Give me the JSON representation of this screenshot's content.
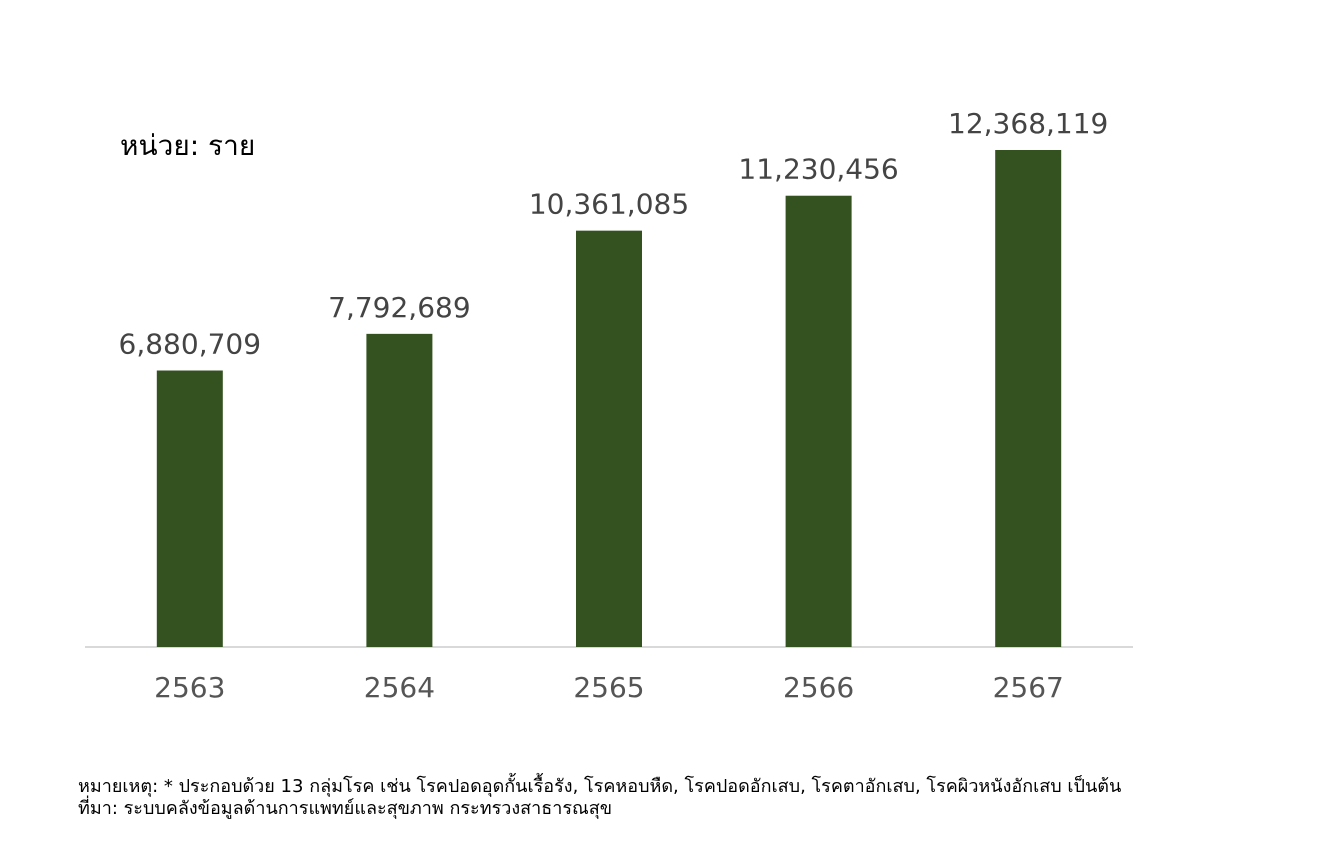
{
  "chart_data": {
    "type": "bar",
    "unit_label": "หน่วย: ราย",
    "categories": [
      "2563",
      "2564",
      "2565",
      "2566",
      "2567"
    ],
    "values": [
      6880709,
      7792689,
      10361085,
      11230456,
      12368119
    ],
    "data_labels": [
      "6,880,709",
      "7,792,689",
      "10,361,085",
      "11,230,456",
      "12,368,119"
    ],
    "ylim": [
      0,
      14000000
    ],
    "grid": false,
    "legend": "none",
    "bar_color": "#33521f",
    "axis_color": "#d9d9d9"
  },
  "notes": {
    "remark": "หมายเหตุ: * ประกอบด้วย 13 กลุ่มโรค เช่น โรคปอดอุดกั้นเรื้อรัง, โรคหอบหืด, โรคปอดอักเสบ, โรคตาอักเสบ, โรคผิวหนังอักเสบ เป็นต้น",
    "source": "ที่มา: ระบบคลังข้อมูลด้านการแพทย์และสุขภาพ กระทรวงสาธารณสุข"
  }
}
